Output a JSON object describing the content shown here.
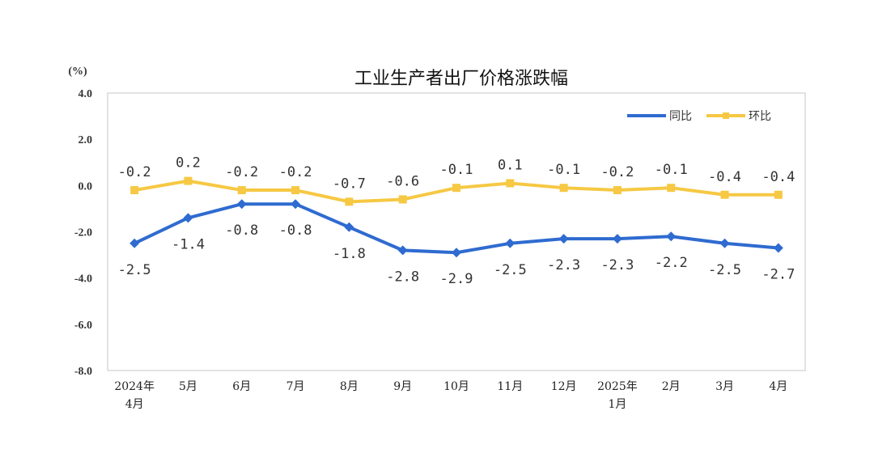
{
  "chart_data": {
    "type": "line",
    "title": "工业生产者出厂价格涨跌幅",
    "ylabel": "(%)",
    "ylim": [
      -8.0,
      4.0
    ],
    "yticks": [
      "4.0",
      "2.0",
      "0.0",
      "-2.0",
      "-4.0",
      "-6.0",
      "-8.0"
    ],
    "ytick_values": [
      4,
      2,
      0,
      -2,
      -4,
      -6,
      -8
    ],
    "categories": [
      [
        "2024年",
        "4月"
      ],
      [
        "5月"
      ],
      [
        "6月"
      ],
      [
        "7月"
      ],
      [
        "8月"
      ],
      [
        "9月"
      ],
      [
        "10月"
      ],
      [
        "11月"
      ],
      [
        "12月"
      ],
      [
        "2025年",
        "1月"
      ],
      [
        "2月"
      ],
      [
        "3月"
      ],
      [
        "4月"
      ]
    ],
    "legend_placement": "top-right",
    "grid": false,
    "series": [
      {
        "name": "同比",
        "color": "#2f6bd0",
        "marker": "diamond",
        "label_pos": "below",
        "values": [
          -2.5,
          -1.4,
          -0.8,
          -0.8,
          -1.8,
          -2.8,
          -2.9,
          -2.5,
          -2.3,
          -2.3,
          -2.2,
          -2.5,
          -2.7
        ],
        "labels": [
          "-2.5",
          "-1.4",
          "-0.8",
          "-0.8",
          "-1.8",
          "-2.8",
          "-2.9",
          "-2.5",
          "-2.3",
          "-2.3",
          "-2.2",
          "-2.5",
          "-2.7"
        ]
      },
      {
        "name": "环比",
        "color": "#f6c843",
        "marker": "square",
        "label_pos": "above",
        "values": [
          -0.2,
          0.2,
          -0.2,
          -0.2,
          -0.7,
          -0.6,
          -0.1,
          0.1,
          -0.1,
          -0.2,
          -0.1,
          -0.4,
          -0.4
        ],
        "labels": [
          "-0.2",
          "0.2",
          "-0.2",
          "-0.2",
          "-0.7",
          "-0.6",
          "-0.1",
          "0.1",
          "-0.1",
          "-0.2",
          "-0.1",
          "-0.4",
          "-0.4"
        ]
      }
    ]
  }
}
